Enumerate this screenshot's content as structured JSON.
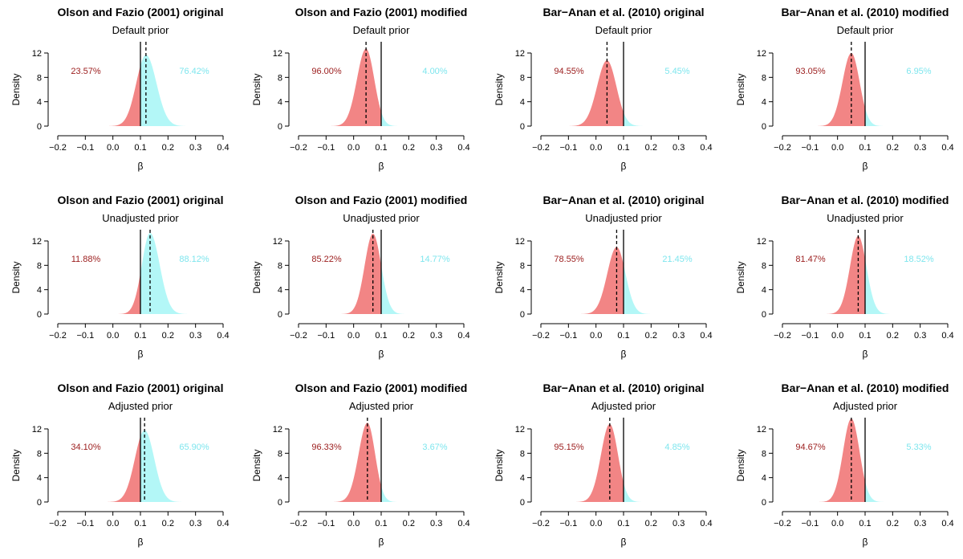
{
  "colors": {
    "below_fill": "#f28585",
    "above_fill": "#b3f7f7",
    "below_text": "#9b1c1c",
    "above_text": "#7fe6ee"
  },
  "chart_data": [
    {
      "type": "area",
      "title": "Olson and Fazio (2001) original",
      "subtitle": "Default prior",
      "xlabel": "β",
      "ylabel": "Density",
      "xlim": [
        -0.2,
        0.4
      ],
      "ylim": [
        0,
        12
      ],
      "x_ticks": [
        "−0.2",
        "−0.1",
        "0.0",
        "0.1",
        "0.2",
        "0.3",
        "0.4"
      ],
      "y_ticks": [
        "0",
        "4",
        "8",
        "12"
      ],
      "reference_line": 0.1,
      "median": 0.12,
      "peak_x": 0.12,
      "peak_density": 11.7,
      "spread_left": 0.035,
      "spread_right": 0.038,
      "below_label": "23.57%",
      "above_label": "76.42%"
    },
    {
      "type": "area",
      "title": "Olson and Fazio (2001) modified",
      "subtitle": "Default prior",
      "xlabel": "β",
      "ylabel": "Density",
      "xlim": [
        -0.2,
        0.4
      ],
      "ylim": [
        0,
        12
      ],
      "x_ticks": [
        "−0.2",
        "−0.1",
        "0.0",
        "0.1",
        "0.2",
        "0.3",
        "0.4"
      ],
      "y_ticks": [
        "0",
        "4",
        "8",
        "12"
      ],
      "reference_line": 0.1,
      "median": 0.045,
      "peak_x": 0.045,
      "peak_density": 12.7,
      "spread_left": 0.033,
      "spread_right": 0.03,
      "below_label": "96.00%",
      "above_label": "4.00%"
    },
    {
      "type": "area",
      "title": "Bar−Anan et al. (2010) original",
      "subtitle": "Default prior",
      "xlabel": "β",
      "ylabel": "Density",
      "xlim": [
        -0.2,
        0.4
      ],
      "ylim": [
        0,
        12
      ],
      "x_ticks": [
        "−0.2",
        "−0.1",
        "0.0",
        "0.1",
        "0.2",
        "0.3",
        "0.4"
      ],
      "y_ticks": [
        "0",
        "4",
        "8",
        "12"
      ],
      "reference_line": 0.1,
      "median": 0.04,
      "peak_x": 0.04,
      "peak_density": 10.8,
      "spread_left": 0.036,
      "spread_right": 0.034,
      "below_label": "94.55%",
      "above_label": "5.45%"
    },
    {
      "type": "area",
      "title": "Bar−Anan et al. (2010) modified",
      "subtitle": "Default prior",
      "xlabel": "β",
      "ylabel": "Density",
      "xlim": [
        -0.2,
        0.4
      ],
      "ylim": [
        0,
        12
      ],
      "x_ticks": [
        "−0.2",
        "−0.1",
        "0.0",
        "0.1",
        "0.2",
        "0.3",
        "0.4"
      ],
      "y_ticks": [
        "0",
        "4",
        "8",
        "12"
      ],
      "reference_line": 0.1,
      "median": 0.05,
      "peak_x": 0.05,
      "peak_density": 12.0,
      "spread_left": 0.032,
      "spread_right": 0.03,
      "below_label": "93.05%",
      "above_label": "6.95%"
    },
    {
      "type": "area",
      "title": "Olson and Fazio (2001) original",
      "subtitle": "Unadjusted prior",
      "xlabel": "β",
      "ylabel": "Density",
      "xlim": [
        -0.2,
        0.4
      ],
      "ylim": [
        0,
        12
      ],
      "x_ticks": [
        "−0.2",
        "−0.1",
        "0.0",
        "0.1",
        "0.2",
        "0.3",
        "0.4"
      ],
      "y_ticks": [
        "0",
        "4",
        "8",
        "12"
      ],
      "reference_line": 0.1,
      "median": 0.135,
      "peak_x": 0.135,
      "peak_density": 13.3,
      "spread_left": 0.03,
      "spread_right": 0.035,
      "below_label": "11.88%",
      "above_label": "88.12%"
    },
    {
      "type": "area",
      "title": "Olson and Fazio (2001) modified",
      "subtitle": "Unadjusted prior",
      "xlabel": "β",
      "ylabel": "Density",
      "xlim": [
        -0.2,
        0.4
      ],
      "ylim": [
        0,
        12
      ],
      "x_ticks": [
        "−0.2",
        "−0.1",
        "0.0",
        "0.1",
        "0.2",
        "0.3",
        "0.4"
      ],
      "y_ticks": [
        "0",
        "4",
        "8",
        "12"
      ],
      "reference_line": 0.1,
      "median": 0.07,
      "peak_x": 0.07,
      "peak_density": 13.2,
      "spread_left": 0.03,
      "spread_right": 0.03,
      "below_label": "85.22%",
      "above_label": "14.77%"
    },
    {
      "type": "area",
      "title": "Bar−Anan et al. (2010) original",
      "subtitle": "Unadjusted prior",
      "xlabel": "β",
      "ylabel": "Density",
      "xlim": [
        -0.2,
        0.4
      ],
      "ylim": [
        0,
        12
      ],
      "x_ticks": [
        "−0.2",
        "−0.1",
        "0.0",
        "0.1",
        "0.2",
        "0.3",
        "0.4"
      ],
      "y_ticks": [
        "0",
        "4",
        "8",
        "12"
      ],
      "reference_line": 0.1,
      "median": 0.075,
      "peak_x": 0.075,
      "peak_density": 11.0,
      "spread_left": 0.034,
      "spread_right": 0.032,
      "below_label": "78.55%",
      "above_label": "21.45%"
    },
    {
      "type": "area",
      "title": "Bar−Anan et al. (2010) modified",
      "subtitle": "Unadjusted prior",
      "xlabel": "β",
      "ylabel": "Density",
      "xlim": [
        -0.2,
        0.4
      ],
      "ylim": [
        0,
        12
      ],
      "x_ticks": [
        "−0.2",
        "−0.1",
        "0.0",
        "0.1",
        "0.2",
        "0.3",
        "0.4"
      ],
      "y_ticks": [
        "0",
        "4",
        "8",
        "12"
      ],
      "reference_line": 0.1,
      "median": 0.075,
      "peak_x": 0.075,
      "peak_density": 12.8,
      "spread_left": 0.03,
      "spread_right": 0.03,
      "below_label": "81.47%",
      "above_label": "18.52%"
    },
    {
      "type": "area",
      "title": "Olson and Fazio (2001) original",
      "subtitle": "Adjusted prior",
      "xlabel": "β",
      "ylabel": "Density",
      "xlim": [
        -0.2,
        0.4
      ],
      "ylim": [
        0,
        12
      ],
      "x_ticks": [
        "−0.2",
        "−0.1",
        "0.0",
        "0.1",
        "0.2",
        "0.3",
        "0.4"
      ],
      "y_ticks": [
        "0",
        "4",
        "8",
        "12"
      ],
      "reference_line": 0.1,
      "median": 0.115,
      "peak_x": 0.115,
      "peak_density": 11.8,
      "spread_left": 0.035,
      "spread_right": 0.035,
      "below_label": "34.10%",
      "above_label": "65.90%"
    },
    {
      "type": "area",
      "title": "Olson and Fazio (2001) modified",
      "subtitle": "Adjusted prior",
      "xlabel": "β",
      "ylabel": "Density",
      "xlim": [
        -0.2,
        0.4
      ],
      "ylim": [
        0,
        12
      ],
      "x_ticks": [
        "−0.2",
        "−0.1",
        "0.0",
        "0.1",
        "0.2",
        "0.3",
        "0.4"
      ],
      "y_ticks": [
        "0",
        "4",
        "8",
        "12"
      ],
      "reference_line": 0.1,
      "median": 0.05,
      "peak_x": 0.05,
      "peak_density": 13.0,
      "spread_left": 0.032,
      "spread_right": 0.028,
      "below_label": "96.33%",
      "above_label": "3.67%"
    },
    {
      "type": "area",
      "title": "Bar−Anan et al. (2010) original",
      "subtitle": "Adjusted prior",
      "xlabel": "β",
      "ylabel": "Density",
      "xlim": [
        -0.2,
        0.4
      ],
      "ylim": [
        0,
        12
      ],
      "x_ticks": [
        "−0.2",
        "−0.1",
        "0.0",
        "0.1",
        "0.2",
        "0.3",
        "0.4"
      ],
      "y_ticks": [
        "0",
        "4",
        "8",
        "12"
      ],
      "reference_line": 0.1,
      "median": 0.05,
      "peak_x": 0.05,
      "peak_density": 12.8,
      "spread_left": 0.032,
      "spread_right": 0.03,
      "below_label": "95.15%",
      "above_label": "4.85%"
    },
    {
      "type": "area",
      "title": "Bar−Anan et al. (2010) modified",
      "subtitle": "Adjusted prior",
      "xlabel": "β",
      "ylabel": "Density",
      "xlim": [
        -0.2,
        0.4
      ],
      "ylim": [
        0,
        12
      ],
      "x_ticks": [
        "−0.2",
        "−0.1",
        "0.0",
        "0.1",
        "0.2",
        "0.3",
        "0.4"
      ],
      "y_ticks": [
        "0",
        "4",
        "8",
        "12"
      ],
      "reference_line": 0.1,
      "median": 0.05,
      "peak_x": 0.05,
      "peak_density": 13.7,
      "spread_left": 0.03,
      "spread_right": 0.03,
      "below_label": "94.67%",
      "above_label": "5.33%"
    }
  ]
}
